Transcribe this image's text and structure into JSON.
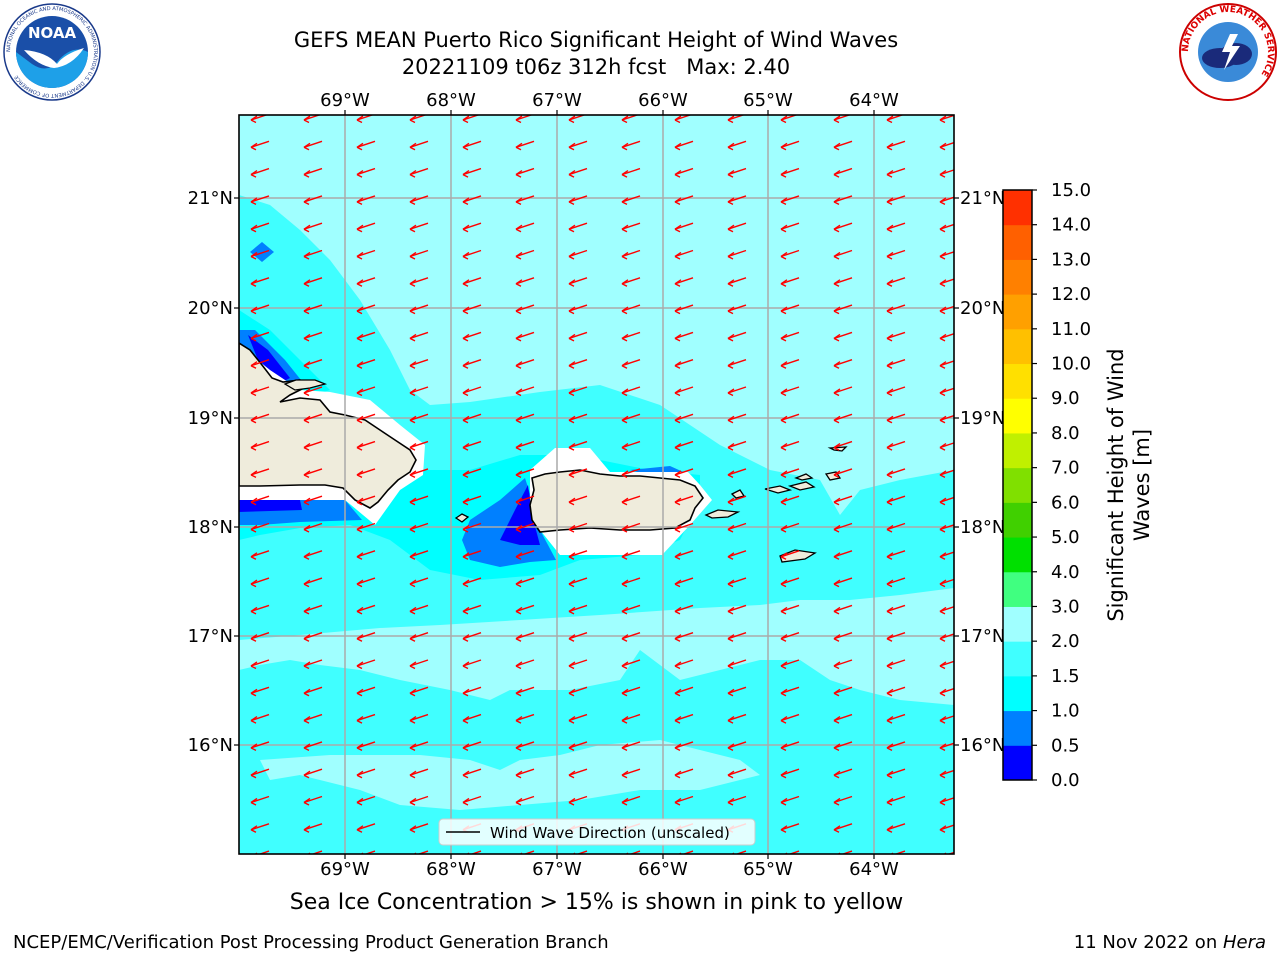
{
  "header": {
    "title_line1": "GEFS MEAN Puerto Rico Significant Height of Wind Waves",
    "title_line2": "20221109 t06z 312h fcst   Max: 2.40"
  },
  "logos": {
    "left": "noaa-logo",
    "left_text": "NOAA",
    "left_ring_text": "NATIONAL OCEANIC AND ATMOSPHERIC ADMINISTRATION  U.S. DEPARTMENT OF COMMERCE",
    "right": "national-weather-service-logo",
    "right_ring_text": "NATIONAL WEATHER SERVICE"
  },
  "map": {
    "lon_labels": [
      "69°W",
      "68°W",
      "67°W",
      "66°W",
      "65°W",
      "64°W"
    ],
    "lat_labels": [
      "21°N",
      "20°N",
      "19°N",
      "18°N",
      "17°N",
      "16°N"
    ],
    "legend_label": "Wind Wave Direction (unscaled)",
    "arrow_color": "#ff0000",
    "land_color": "#efecdc"
  },
  "colorbar": {
    "label": "Significant Height of Wind Waves [m]",
    "tick_labels": [
      "0.0",
      "0.5",
      "1.0",
      "1.5",
      "2.0",
      "3.0",
      "4.0",
      "5.0",
      "6.0",
      "7.0",
      "8.0",
      "9.0",
      "10.0",
      "11.0",
      "12.0",
      "13.0",
      "14.0",
      "15.0"
    ],
    "colors": [
      "#0000ff",
      "#0080ff",
      "#00ffff",
      "#40ffff",
      "#a0ffff",
      "#40ff80",
      "#00e000",
      "#40d000",
      "#80e000",
      "#c0f000",
      "#ffff00",
      "#ffe000",
      "#ffc000",
      "#ffa000",
      "#ff8000",
      "#ff6000",
      "#ff3000"
    ]
  },
  "subtitle": "Sea Ice Concentration > 15% is shown in pink to yellow",
  "footer": {
    "left": "NCEP/EMC/Verification Post Processing Product Generation Branch",
    "right_date": "11 Nov 2022 on ",
    "right_host": "Hera"
  }
}
